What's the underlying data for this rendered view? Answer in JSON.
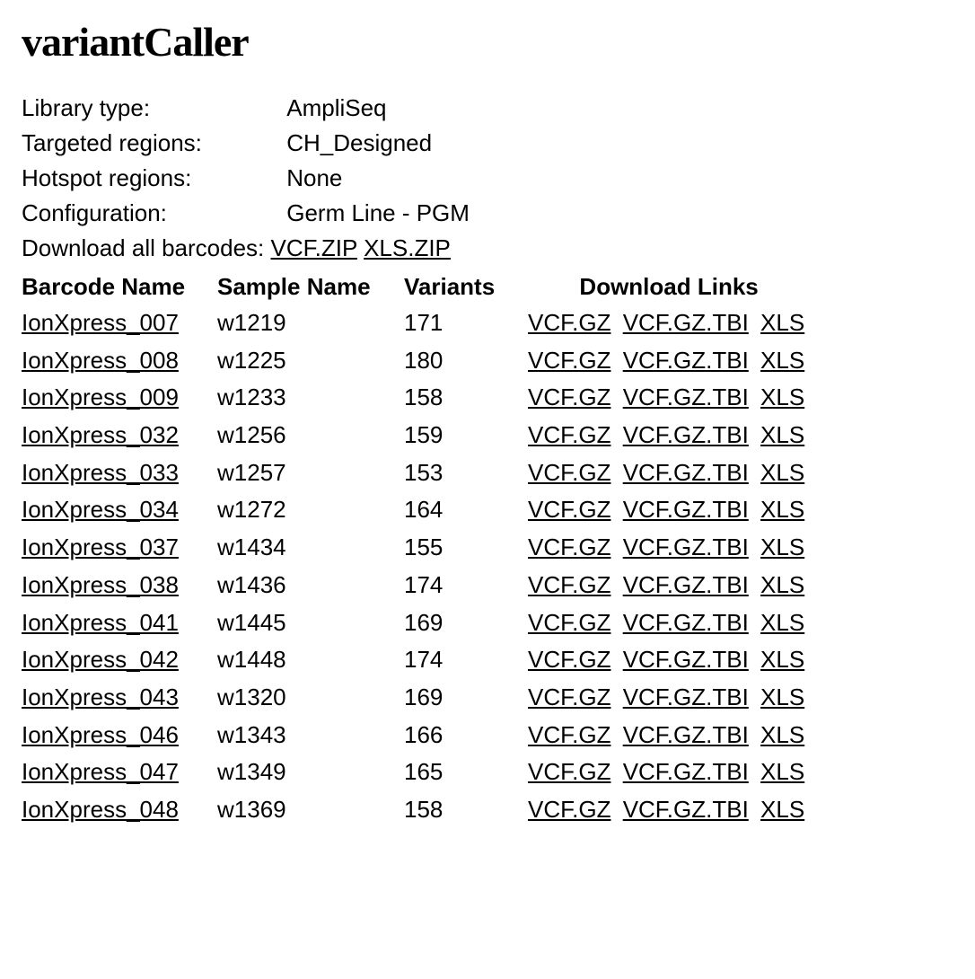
{
  "title": "variantCaller",
  "meta": {
    "library_type_label": "Library type:",
    "library_type_value": "AmpliSeq",
    "targeted_regions_label": "Targeted regions:",
    "targeted_regions_value": "CH_Designed",
    "hotspot_regions_label": "Hotspot regions:",
    "hotspot_regions_value": "None",
    "configuration_label": "Configuration:",
    "configuration_value": "Germ Line - PGM",
    "download_all_label": "Download all barcodes:",
    "download_all_vcf": "VCF.ZIP",
    "download_all_xls": "XLS.ZIP"
  },
  "table": {
    "headers": {
      "barcode": "Barcode Name",
      "sample": "Sample Name",
      "variants": "Variants",
      "links": "Download Links"
    },
    "link_labels": {
      "vcfgz": "VCF.GZ",
      "vcfgztbi": "VCF.GZ.TBI",
      "xls": "XLS"
    },
    "rows": [
      {
        "barcode": "IonXpress_007",
        "sample": "w1219",
        "variants": "171"
      },
      {
        "barcode": "IonXpress_008",
        "sample": "w1225",
        "variants": "180"
      },
      {
        "barcode": "IonXpress_009",
        "sample": "w1233",
        "variants": "158"
      },
      {
        "barcode": "IonXpress_032",
        "sample": "w1256",
        "variants": "159"
      },
      {
        "barcode": "IonXpress_033",
        "sample": "w1257",
        "variants": "153"
      },
      {
        "barcode": "IonXpress_034",
        "sample": "w1272",
        "variants": "164"
      },
      {
        "barcode": "IonXpress_037",
        "sample": "w1434",
        "variants": "155"
      },
      {
        "barcode": "IonXpress_038",
        "sample": "w1436",
        "variants": "174"
      },
      {
        "barcode": "IonXpress_041",
        "sample": "w1445",
        "variants": "169"
      },
      {
        "barcode": "IonXpress_042",
        "sample": "w1448",
        "variants": "174"
      },
      {
        "barcode": "IonXpress_043",
        "sample": "w1320",
        "variants": "169"
      },
      {
        "barcode": "IonXpress_046",
        "sample": "w1343",
        "variants": "166"
      },
      {
        "barcode": "IonXpress_047",
        "sample": "w1349",
        "variants": "165"
      },
      {
        "barcode": "IonXpress_048",
        "sample": "w1369",
        "variants": "158"
      }
    ]
  },
  "style": {
    "background_color": "#ffffff",
    "text_color": "#000000",
    "link_color": "#000000",
    "body_fontsize": 26,
    "title_fontsize": 46,
    "title_fontfamily": "serif"
  }
}
